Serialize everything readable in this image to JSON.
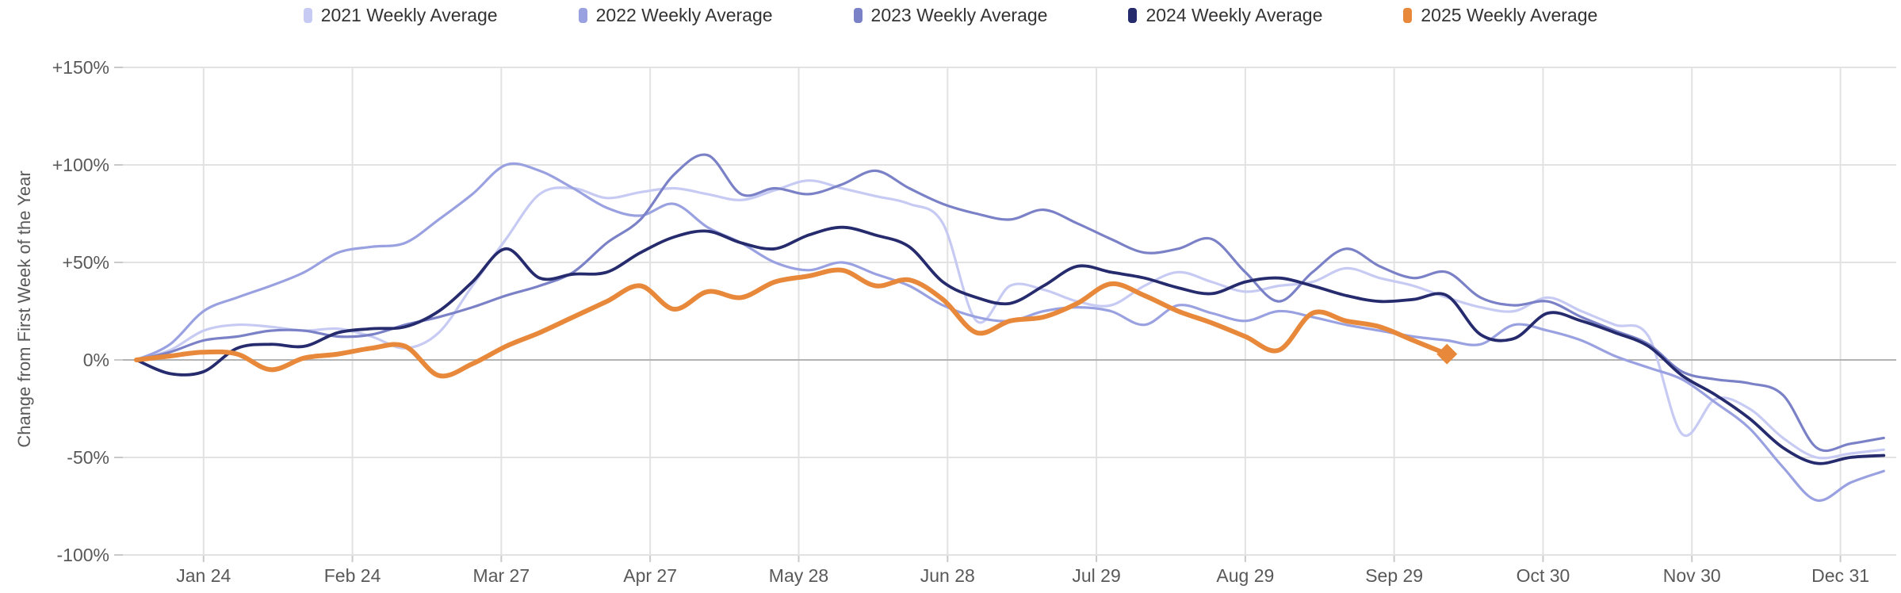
{
  "legend": {
    "items": [
      {
        "label": "2021 Weekly Average",
        "color": "#c7cbf3"
      },
      {
        "label": "2022 Weekly Average",
        "color": "#9aa1e1"
      },
      {
        "label": "2023 Weekly Average",
        "color": "#7b81c7"
      },
      {
        "label": "2024 Weekly Average",
        "color": "#252b6d"
      },
      {
        "label": "2025 Weekly Average",
        "color": "#e8883a"
      }
    ]
  },
  "axis_style": {
    "grid_color": "#e2e2e2",
    "zero_line_color": "#b3b3b3",
    "tick_color": "#c9c9c9",
    "label_color": "#595959"
  },
  "chart_data": {
    "type": "line",
    "title": "",
    "xlabel": "",
    "ylabel": "Change from First Week of the Year",
    "ylim": [
      -100,
      150
    ],
    "grid": true,
    "legend_position": "top",
    "x_unit": "weeks since first week of the year",
    "y_ticks": [
      {
        "label": "+150%",
        "value": 150
      },
      {
        "label": "+100%",
        "value": 100
      },
      {
        "label": "+50%",
        "value": 50
      },
      {
        "label": "0%",
        "value": 0
      },
      {
        "label": "-50%",
        "value": -50
      },
      {
        "label": "-100%",
        "value": -100
      }
    ],
    "x_ticks": [
      {
        "label": "Jan 24",
        "week": 2.0
      },
      {
        "label": "Feb 24",
        "week": 6.43
      },
      {
        "label": "Mar 27",
        "week": 10.86
      },
      {
        "label": "Apr 27",
        "week": 15.29
      },
      {
        "label": "May 28",
        "week": 19.71
      },
      {
        "label": "Jun 28",
        "week": 24.14
      },
      {
        "label": "Jul 29",
        "week": 28.57
      },
      {
        "label": "Aug 29",
        "week": 33.0
      },
      {
        "label": "Sep 29",
        "week": 37.43
      },
      {
        "label": "Oct 30",
        "week": 41.86
      },
      {
        "label": "Nov 30",
        "week": 46.29
      },
      {
        "label": "Dec 31",
        "week": 50.71
      }
    ],
    "series": [
      {
        "name": "2021 Weekly Average",
        "color": "#c7cbf3",
        "line_width": 3.2,
        "values": [
          0,
          5,
          15,
          18,
          17,
          15,
          16,
          12,
          6,
          14,
          38,
          62,
          85,
          88,
          83,
          86,
          88,
          85,
          82,
          87,
          92,
          88,
          84,
          80,
          70,
          20,
          38,
          36,
          30,
          28,
          38,
          45,
          40,
          35,
          38,
          40,
          47,
          42,
          38,
          32,
          27,
          25,
          32,
          25,
          18,
          12,
          -38,
          -20,
          -25,
          -40,
          -50,
          -48,
          -46
        ]
      },
      {
        "name": "2022 Weekly Average",
        "color": "#9aa1e1",
        "line_width": 3.2,
        "values": [
          0,
          8,
          25,
          32,
          38,
          45,
          55,
          58,
          60,
          72,
          85,
          100,
          97,
          88,
          78,
          74,
          80,
          68,
          60,
          50,
          46,
          50,
          44,
          38,
          28,
          22,
          20,
          25,
          27,
          25,
          18,
          28,
          24,
          20,
          25,
          22,
          18,
          15,
          12,
          10,
          8,
          18,
          15,
          10,
          2,
          -4,
          -10,
          -22,
          -35,
          -55,
          -72,
          -63,
          -57
        ]
      },
      {
        "name": "2023 Weekly Average",
        "color": "#7b81c7",
        "line_width": 3.2,
        "values": [
          0,
          4,
          10,
          12,
          15,
          15,
          12,
          13,
          18,
          22,
          27,
          33,
          38,
          45,
          60,
          72,
          95,
          105,
          85,
          88,
          85,
          90,
          97,
          88,
          80,
          75,
          72,
          77,
          70,
          62,
          55,
          57,
          62,
          45,
          30,
          45,
          57,
          48,
          42,
          45,
          32,
          28,
          30,
          22,
          15,
          8,
          -6,
          -10,
          -12,
          -18,
          -45,
          -43,
          -40
        ]
      },
      {
        "name": "2024 Weekly Average",
        "color": "#252b6d",
        "line_width": 3.8,
        "values": [
          0,
          -7,
          -6,
          6,
          8,
          7,
          14,
          16,
          17,
          25,
          40,
          57,
          42,
          44,
          45,
          55,
          63,
          66,
          60,
          57,
          64,
          68,
          64,
          58,
          40,
          32,
          29,
          38,
          48,
          45,
          42,
          37,
          34,
          40,
          42,
          38,
          33,
          30,
          31,
          33,
          13,
          11,
          24,
          20,
          14,
          7,
          -8,
          -18,
          -30,
          -45,
          -53,
          -50,
          -49
        ]
      },
      {
        "name": "2025 Weekly Average",
        "color": "#e8883a",
        "line_width": 6,
        "end_marker": "diamond",
        "values": [
          0,
          2,
          4,
          3,
          -5,
          1,
          3,
          6,
          7,
          -8,
          -2,
          7,
          14,
          22,
          30,
          38,
          26,
          35,
          32,
          40,
          43,
          46,
          38,
          41,
          31,
          14,
          20,
          22,
          29,
          39,
          33,
          25,
          19,
          12,
          5,
          24,
          20,
          17,
          10,
          3
        ]
      }
    ]
  }
}
